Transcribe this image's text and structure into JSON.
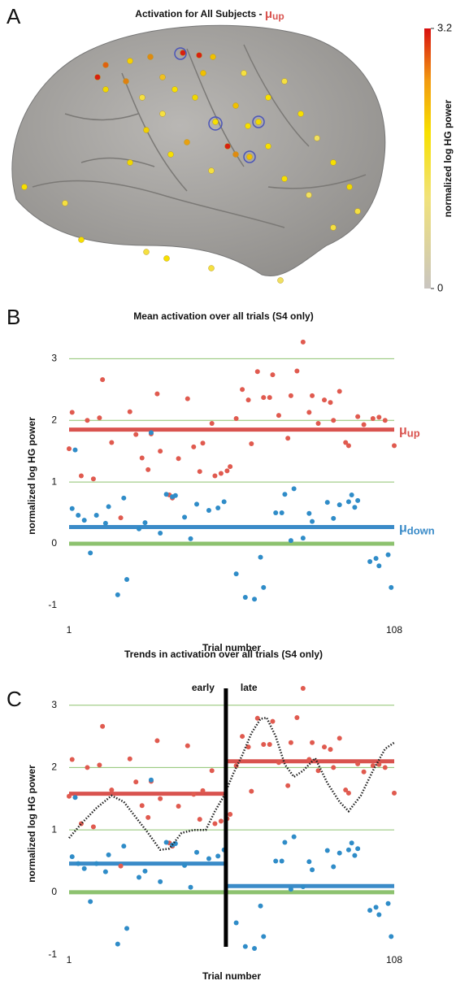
{
  "chart_data": [
    {
      "type": "brain",
      "panel_label": "A",
      "title": "Activation for All Subjects - ",
      "title_mu": "μ",
      "title_sub": "up",
      "title_mu_color": "#d9534f",
      "colorbar_label": "normalized log HG power",
      "clim": [
        0,
        3.2
      ],
      "cticks": [
        0,
        3.2
      ]
    },
    {
      "type": "scatter",
      "panel_label": "B",
      "title": "Mean activation over all trials (S4 only)",
      "xlabel": "Trial number",
      "ylabel": "normalized log HG power",
      "xlim": [
        1,
        108
      ],
      "xticks": [
        1,
        108
      ],
      "ylim": [
        -1.2,
        3.4
      ],
      "yticks": [
        -1,
        0,
        1,
        2,
        3
      ],
      "grid": true,
      "grid_color": "#8dc26f",
      "baseline": 0,
      "series": [
        {
          "color": "#e05a4f",
          "x": [
            1,
            2,
            5,
            7,
            9,
            11,
            12,
            15,
            18,
            21,
            23,
            25,
            27,
            28,
            30,
            31,
            34,
            35,
            37,
            40,
            42,
            44,
            45,
            48,
            49,
            51,
            53,
            54,
            56,
            58,
            60,
            61,
            63,
            65,
            67,
            68,
            70,
            73,
            74,
            76,
            78,
            80,
            81,
            83,
            85,
            87,
            88,
            90,
            92,
            93,
            96,
            98,
            101,
            103,
            105,
            108
          ],
          "values": [
            1.54,
            2.13,
            1.1,
            2.0,
            1.05,
            2.04,
            2.66,
            1.64,
            0.42,
            2.14,
            1.77,
            1.39,
            1.2,
            1.78,
            2.43,
            1.5,
            0.79,
            0.74,
            1.38,
            2.35,
            1.57,
            1.17,
            1.63,
            1.95,
            1.1,
            1.14,
            1.18,
            1.25,
            2.03,
            2.5,
            2.33,
            1.62,
            2.79,
            2.37,
            2.37,
            2.74,
            2.08,
            1.71,
            2.4,
            2.8,
            3.27,
            2.13,
            2.4,
            1.95,
            2.33,
            2.29,
            2.0,
            2.47,
            1.64,
            1.59,
            2.06,
            1.93,
            2.03,
            2.05,
            2.0,
            1.59
          ]
        },
        {
          "color": "#2f8cc8",
          "x": [
            2,
            3,
            4,
            6,
            8,
            10,
            13,
            14,
            17,
            19,
            20,
            24,
            26,
            28,
            31,
            33,
            35,
            36,
            39,
            41,
            43,
            47,
            50,
            52,
            56,
            59,
            62,
            64,
            65,
            69,
            71,
            72,
            74,
            75,
            78,
            80,
            81,
            86,
            88,
            90,
            93,
            94,
            95,
            96,
            100,
            102,
            103,
            106,
            107
          ],
          "values": [
            0.57,
            1.52,
            0.46,
            0.38,
            -0.15,
            0.46,
            0.33,
            0.6,
            -0.83,
            0.74,
            -0.58,
            0.24,
            0.34,
            1.8,
            0.17,
            0.8,
            0.76,
            0.78,
            0.43,
            0.08,
            0.64,
            0.54,
            0.58,
            0.68,
            -0.49,
            -0.87,
            -0.9,
            -0.22,
            -0.71,
            0.5,
            0.5,
            0.8,
            0.05,
            0.89,
            0.09,
            0.49,
            0.36,
            0.67,
            0.41,
            0.63,
            0.68,
            0.79,
            0.59,
            0.7,
            -0.29,
            -0.24,
            -0.36,
            -0.18,
            -0.71
          ]
        }
      ],
      "means": [
        {
          "label": "μ",
          "sub": "up",
          "value": 1.85,
          "color": "#d9534f",
          "x": [
            1,
            108
          ]
        },
        {
          "label": "μ",
          "sub": "down",
          "value": 0.27,
          "color": "#3a8bc8",
          "x": [
            1,
            108
          ]
        }
      ]
    },
    {
      "type": "scatter",
      "panel_label": "C",
      "title": "Trends in activation over all trials (S4 only)",
      "xlabel": "Trial number",
      "ylabel": "normalized log HG power",
      "xlim": [
        1,
        108
      ],
      "xticks": [
        1,
        108
      ],
      "ylim": [
        -1.2,
        3.4
      ],
      "yticks": [
        -1,
        0,
        1,
        2,
        3
      ],
      "grid": true,
      "grid_color": "#8dc26f",
      "baseline": 0,
      "divider": 52.6,
      "divider_left": "early",
      "divider_right": "late",
      "series": [
        {
          "color": "#e05a4f",
          "x": [
            1,
            2,
            5,
            7,
            9,
            11,
            12,
            15,
            18,
            21,
            23,
            25,
            27,
            28,
            30,
            31,
            34,
            35,
            37,
            40,
            42,
            44,
            45,
            48,
            49,
            51,
            53,
            54,
            56,
            58,
            60,
            61,
            63,
            65,
            67,
            68,
            70,
            73,
            74,
            76,
            78,
            80,
            81,
            83,
            85,
            87,
            88,
            90,
            92,
            93,
            96,
            98,
            101,
            103,
            105,
            108
          ],
          "values": [
            1.54,
            2.13,
            1.1,
            2.0,
            1.05,
            2.04,
            2.66,
            1.64,
            0.42,
            2.14,
            1.77,
            1.39,
            1.2,
            1.78,
            2.43,
            1.5,
            0.79,
            0.74,
            1.38,
            2.35,
            1.57,
            1.17,
            1.63,
            1.95,
            1.1,
            1.14,
            1.18,
            1.25,
            2.03,
            2.5,
            2.33,
            1.62,
            2.79,
            2.37,
            2.37,
            2.74,
            2.08,
            1.71,
            2.4,
            2.8,
            3.27,
            2.13,
            2.4,
            1.95,
            2.33,
            2.29,
            2.0,
            2.47,
            1.64,
            1.59,
            2.06,
            1.93,
            2.03,
            2.05,
            2.0,
            1.59
          ]
        },
        {
          "color": "#2f8cc8",
          "x": [
            2,
            3,
            4,
            6,
            8,
            10,
            13,
            14,
            17,
            19,
            20,
            24,
            26,
            28,
            31,
            33,
            35,
            36,
            39,
            41,
            43,
            47,
            50,
            52,
            56,
            59,
            62,
            64,
            65,
            69,
            71,
            72,
            74,
            75,
            78,
            80,
            81,
            86,
            88,
            90,
            93,
            94,
            95,
            96,
            100,
            102,
            103,
            106,
            107
          ],
          "values": [
            0.57,
            1.52,
            0.46,
            0.38,
            -0.15,
            0.46,
            0.33,
            0.6,
            -0.83,
            0.74,
            -0.58,
            0.24,
            0.34,
            1.8,
            0.17,
            0.8,
            0.76,
            0.78,
            0.43,
            0.08,
            0.64,
            0.54,
            0.58,
            0.68,
            -0.49,
            -0.87,
            -0.9,
            -0.22,
            -0.71,
            0.5,
            0.5,
            0.8,
            0.05,
            0.89,
            0.09,
            0.49,
            0.36,
            0.67,
            0.41,
            0.63,
            0.68,
            0.79,
            0.59,
            0.7,
            -0.29,
            -0.24,
            -0.36,
            -0.18,
            -0.71
          ]
        }
      ],
      "means": [
        {
          "value": 1.58,
          "color": "#d9534f",
          "x": [
            1,
            52.6
          ]
        },
        {
          "value": 2.1,
          "color": "#d9534f",
          "x": [
            52.6,
            108
          ]
        },
        {
          "value": 0.46,
          "color": "#3a8bc8",
          "x": [
            1,
            52.6
          ]
        },
        {
          "value": 0.1,
          "color": "#3a8bc8",
          "x": [
            52.6,
            108
          ]
        }
      ],
      "trend": {
        "x": [
          1,
          5,
          10,
          15,
          19,
          23,
          27,
          31,
          34,
          38,
          42,
          46,
          49,
          52,
          55,
          58,
          61,
          64,
          66,
          69,
          72,
          75,
          78,
          82,
          86,
          90,
          93,
          97,
          101,
          105,
          108
        ],
        "values": [
          0.87,
          1.1,
          1.35,
          1.55,
          1.45,
          1.2,
          0.95,
          0.68,
          0.7,
          0.95,
          1.0,
          1.0,
          1.3,
          1.55,
          1.9,
          2.2,
          2.55,
          2.78,
          2.8,
          2.5,
          2.05,
          1.85,
          1.95,
          2.15,
          1.75,
          1.45,
          1.3,
          1.55,
          1.95,
          2.3,
          2.4
        ]
      }
    }
  ]
}
